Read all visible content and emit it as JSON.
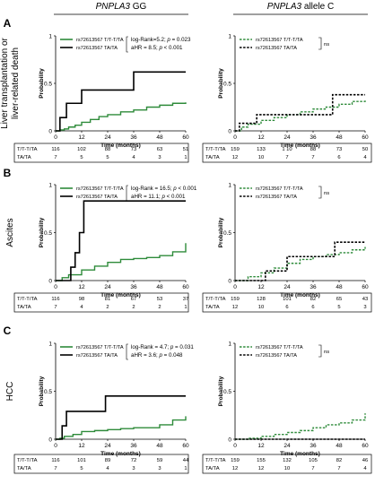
{
  "figure": {
    "col_headers": [
      {
        "gene": "PNPLA3",
        "rest": " GG"
      },
      {
        "gene": "PNPLA3",
        "rest": " allele C"
      }
    ],
    "panels": [
      {
        "letter": "A",
        "row_label": [
          "Liver transplantation or",
          "liver-related death"
        ]
      },
      {
        "letter": "B",
        "row_label": [
          "Ascites"
        ]
      },
      {
        "letter": "C",
        "row_label": [
          "HCC"
        ]
      }
    ],
    "axis": {
      "ylabel": "Probability",
      "xlabel": "Time (months)",
      "yticks": [
        "0",
        "0.5",
        "1"
      ],
      "xticks": [
        "0",
        "12",
        "24",
        "36",
        "48",
        "60"
      ]
    },
    "ns_label": "ns"
  },
  "chart_data": [
    {
      "type": "line",
      "panel": "A",
      "group": "PNPLA3 GG",
      "xlabel": "Time (months)",
      "ylabel": "Probability",
      "xlim": [
        0,
        60
      ],
      "ylim": [
        0,
        1
      ],
      "stats": [
        "log-Rank=5.2;  p = 0.023",
        "aHR = 8.5;  p < 0.001"
      ],
      "series": [
        {
          "name": "rs72613567 T/T-T/TA",
          "style": "solid",
          "color": "#2e8b3a",
          "x": [
            0,
            2,
            4,
            6,
            9,
            12,
            16,
            20,
            24,
            30,
            36,
            42,
            48,
            54,
            60
          ],
          "y": [
            0,
            0.01,
            0.02,
            0.04,
            0.06,
            0.09,
            0.12,
            0.15,
            0.17,
            0.2,
            0.22,
            0.25,
            0.27,
            0.29,
            0.3
          ]
        },
        {
          "name": "rs72613567 TA/TA",
          "style": "solid",
          "color": "#000000",
          "x": [
            0,
            2,
            5,
            8,
            12,
            36,
            60
          ],
          "y": [
            0,
            0.14,
            0.29,
            0.29,
            0.43,
            0.62,
            0.62
          ]
        }
      ],
      "risk_table": {
        "rows": [
          {
            "label": "T/T-T/TA",
            "values": [
              "116",
              "102",
              "88",
              "73",
              "63",
              "51"
            ]
          },
          {
            "label": "TA/TA",
            "values": [
              "7",
              "5",
              "5",
              "4",
              "3",
              "1"
            ]
          }
        ]
      }
    },
    {
      "type": "line",
      "panel": "A",
      "group": "PNPLA3 allele C",
      "xlabel": "Time (months)",
      "ylabel": "Probability",
      "xlim": [
        0,
        60
      ],
      "ylim": [
        0,
        1
      ],
      "stats": [],
      "series": [
        {
          "name": "rs72613567 T/T-T/TA",
          "style": "dashed",
          "color": "#2e8b3a",
          "x": [
            0,
            3,
            6,
            12,
            18,
            24,
            30,
            36,
            42,
            48,
            54,
            60
          ],
          "y": [
            0,
            0.04,
            0.07,
            0.11,
            0.14,
            0.17,
            0.2,
            0.23,
            0.25,
            0.28,
            0.31,
            0.33
          ]
        },
        {
          "name": "rs72613567 TA/TA",
          "style": "dashed",
          "color": "#000000",
          "x": [
            0,
            2,
            5,
            10,
            24,
            45,
            60
          ],
          "y": [
            0,
            0.08,
            0.08,
            0.17,
            0.17,
            0.38,
            0.38
          ]
        }
      ],
      "risk_table": {
        "rows": [
          {
            "label": "T/T-T/TA",
            "values": [
              "159",
              "133",
              "1 10",
              "88",
              "73",
              "50"
            ]
          },
          {
            "label": "TA/TA",
            "values": [
              "12",
              "10",
              "7",
              "7",
              "6",
              "4"
            ]
          }
        ]
      }
    },
    {
      "type": "line",
      "panel": "B",
      "group": "PNPLA3 GG",
      "xlabel": "Time (months)",
      "ylabel": "Probability",
      "xlim": [
        0,
        60
      ],
      "ylim": [
        0,
        1
      ],
      "stats": [
        "log-Rank = 16.5;  p < 0.001",
        "aHR = 11.1;  p < 0.001"
      ],
      "series": [
        {
          "name": "rs72613567 T/T-T/TA",
          "style": "solid",
          "color": "#2e8b3a",
          "x": [
            0,
            3,
            6,
            12,
            18,
            24,
            30,
            36,
            42,
            48,
            54,
            60
          ],
          "y": [
            0,
            0.03,
            0.06,
            0.11,
            0.15,
            0.19,
            0.22,
            0.23,
            0.24,
            0.26,
            0.3,
            0.39
          ]
        },
        {
          "name": "rs72613567 TA/TA",
          "style": "solid",
          "color": "#000000",
          "x": [
            0,
            7,
            9,
            11,
            13,
            60
          ],
          "y": [
            0,
            0.14,
            0.29,
            0.5,
            0.83,
            0.83
          ]
        }
      ],
      "risk_table": {
        "rows": [
          {
            "label": "T/T-T/TA",
            "values": [
              "116",
              "98",
              "81",
              "67",
              "53",
              "37"
            ]
          },
          {
            "label": "TA/TA",
            "values": [
              "7",
              "4",
              "2",
              "2",
              "2",
              "1"
            ]
          }
        ]
      }
    },
    {
      "type": "line",
      "panel": "B",
      "group": "PNPLA3 allele C",
      "xlabel": "Time (months)",
      "ylabel": "Probability",
      "xlim": [
        0,
        60
      ],
      "ylim": [
        0,
        1
      ],
      "stats": [],
      "series": [
        {
          "name": "rs72613567 T/T-T/TA",
          "style": "dashed",
          "color": "#2e8b3a",
          "x": [
            0,
            6,
            12,
            18,
            24,
            30,
            36,
            42,
            48,
            54,
            60
          ],
          "y": [
            0,
            0.04,
            0.08,
            0.13,
            0.18,
            0.22,
            0.25,
            0.27,
            0.29,
            0.32,
            0.35
          ]
        },
        {
          "name": "rs72613567 TA/TA",
          "style": "dashed",
          "color": "#000000",
          "x": [
            0,
            12,
            14,
            21,
            24,
            46,
            60
          ],
          "y": [
            0,
            0,
            0.1,
            0.1,
            0.25,
            0.4,
            0.4
          ]
        }
      ],
      "risk_table": {
        "rows": [
          {
            "label": "T/T-T/TA",
            "values": [
              "159",
              "128",
              "101",
              "82",
              "65",
              "43"
            ]
          },
          {
            "label": "TA/TA",
            "values": [
              "12",
              "10",
              "6",
              "6",
              "5",
              "3"
            ]
          }
        ]
      }
    },
    {
      "type": "line",
      "panel": "C",
      "group": "PNPLA3 GG",
      "xlabel": "Time (months)",
      "ylabel": "Probability",
      "xlim": [
        0,
        60
      ],
      "ylim": [
        0,
        1
      ],
      "stats": [
        "log-Rank = 4.7;  p = 0.031",
        "aHR = 3.6;  p = 0.048"
      ],
      "series": [
        {
          "name": "rs72613567 T/T-T/TA",
          "style": "solid",
          "color": "#2e8b3a",
          "x": [
            0,
            2,
            4,
            8,
            12,
            18,
            24,
            30,
            36,
            42,
            48,
            54,
            60
          ],
          "y": [
            0,
            0.01,
            0.03,
            0.05,
            0.08,
            0.09,
            0.1,
            0.11,
            0.12,
            0.12,
            0.15,
            0.2,
            0.24
          ]
        },
        {
          "name": "rs72613567 TA/TA",
          "style": "solid",
          "color": "#000000",
          "x": [
            0,
            3,
            5,
            23,
            60
          ],
          "y": [
            0,
            0.14,
            0.29,
            0.45,
            0.45
          ]
        }
      ],
      "risk_table": {
        "rows": [
          {
            "label": "T/T-T/TA",
            "values": [
              "116",
              "101",
              "89",
              "72",
              "59",
              "44"
            ]
          },
          {
            "label": "TA/TA",
            "values": [
              "7",
              "5",
              "4",
              "3",
              "3",
              "1"
            ]
          }
        ]
      }
    },
    {
      "type": "line",
      "panel": "C",
      "group": "PNPLA3 allele C",
      "xlabel": "Time (months)",
      "ylabel": "Probability",
      "xlim": [
        0,
        60
      ],
      "ylim": [
        0,
        1
      ],
      "stats": [],
      "series": [
        {
          "name": "rs72613567 T/T-T/TA",
          "style": "dashed",
          "color": "#2e8b3a",
          "x": [
            0,
            6,
            12,
            18,
            24,
            30,
            36,
            42,
            48,
            54,
            60
          ],
          "y": [
            0,
            0.01,
            0.03,
            0.05,
            0.07,
            0.09,
            0.12,
            0.15,
            0.17,
            0.2,
            0.27
          ]
        },
        {
          "name": "rs72613567 TA/TA",
          "style": "dashed",
          "color": "#000000",
          "x": [
            0,
            60
          ],
          "y": [
            0,
            0
          ]
        }
      ],
      "risk_table": {
        "rows": [
          {
            "label": "T/T-T/TA",
            "values": [
              "159",
              "155",
              "132",
              "105",
              "82",
              "46"
            ]
          },
          {
            "label": "TA/TA",
            "values": [
              "12",
              "12",
              "10",
              "7",
              "7",
              "4"
            ]
          }
        ]
      }
    }
  ]
}
